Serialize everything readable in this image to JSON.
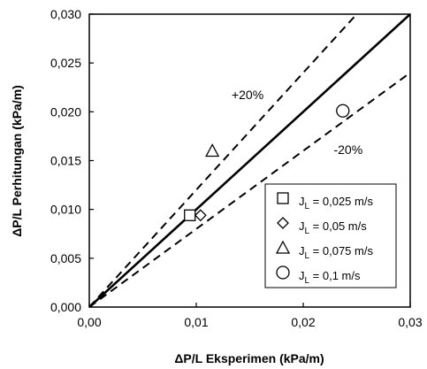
{
  "chart_data": {
    "type": "scatter",
    "xlabel": "ΔP/L Eksperimen (kPa/m)",
    "ylabel": "ΔP/L Perhitungan (kPa/m)",
    "xlim": [
      0,
      0.03
    ],
    "ylim": [
      0,
      0.03
    ],
    "x_ticks": [
      "0,00",
      "0,01",
      "0,02",
      "0,03"
    ],
    "x_tick_values": [
      0,
      0.01,
      0.02,
      0.03
    ],
    "y_ticks": [
      "0,000",
      "0,005",
      "0,010",
      "0,015",
      "0,020",
      "0,025",
      "0,030"
    ],
    "y_tick_values": [
      0,
      0.005,
      0.01,
      0.015,
      0.02,
      0.025,
      0.03
    ],
    "grid": false,
    "legend_position": "bottom-right",
    "reference_lines": [
      {
        "kind": "parity",
        "slope": 1.0,
        "style": "solid",
        "label": ""
      },
      {
        "kind": "upper",
        "slope": 1.2,
        "style": "dashed",
        "label": "+20%"
      },
      {
        "kind": "lower",
        "slope": 0.8,
        "style": "dashed",
        "label": "-20%"
      }
    ],
    "series": [
      {
        "name": "J",
        "subscript": "L",
        "suffix": " = 0,025 m/s",
        "marker": "square",
        "x": [
          0.0094
        ],
        "y": [
          0.0094
        ]
      },
      {
        "name": "J",
        "subscript": "L",
        "suffix": " = 0,05 m/s",
        "marker": "diamond",
        "x": [
          0.0104
        ],
        "y": [
          0.0094
        ]
      },
      {
        "name": "J",
        "subscript": "L",
        "suffix": " = 0,075 m/s",
        "marker": "triangle",
        "x": [
          0.0115
        ],
        "y": [
          0.016
        ]
      },
      {
        "name": "J",
        "subscript": "L",
        "suffix": " = 0,1 m/s",
        "marker": "circle",
        "x": [
          0.0237
        ],
        "y": [
          0.0201
        ]
      }
    ]
  }
}
